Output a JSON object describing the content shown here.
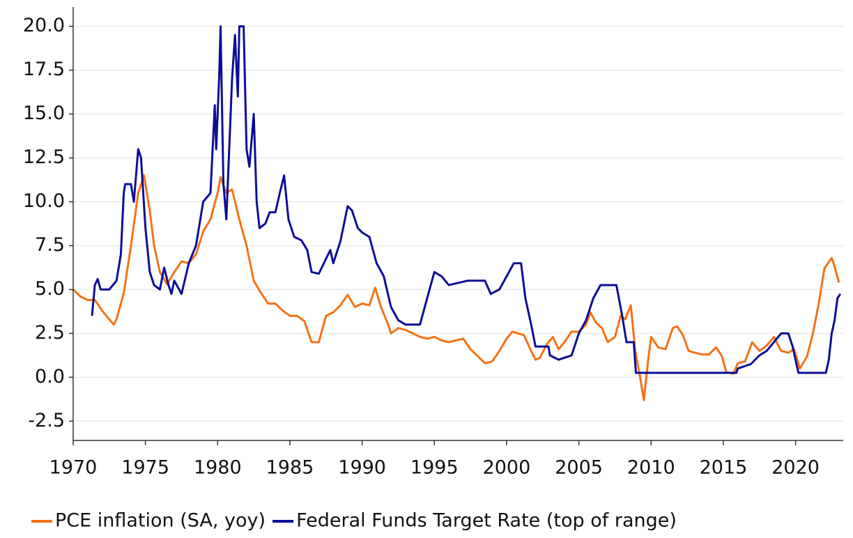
{
  "chart_data": {
    "type": "line",
    "xlim": [
      1970,
      2023.3
    ],
    "xticks": [
      1970,
      1975,
      1980,
      1985,
      1990,
      1995,
      2000,
      2005,
      2010,
      2015,
      2020
    ],
    "ylim": [
      -3.6,
      21.1
    ],
    "yticks": [
      -2.5,
      {
        "value": 0,
        "label": "0.0"
      },
      2.5,
      {
        "value": 5,
        "label": "5.0"
      },
      7.5,
      {
        "value": 10,
        "label": "10.0"
      },
      12.5,
      {
        "value": 15,
        "label": "15.0"
      },
      17.5,
      {
        "value": 20,
        "label": "20.0"
      }
    ],
    "grid": true,
    "legend": "bottom",
    "series": [
      {
        "name": "PCE inflation (SA, yoy)",
        "color": "#f47216",
        "x": [
          1970.0,
          1970.5,
          1971.0,
          1971.5,
          1972.0,
          1972.5,
          1972.8,
          1973.0,
          1973.5,
          1974.0,
          1974.5,
          1974.9,
          1975.3,
          1975.6,
          1976.0,
          1976.5,
          1977.0,
          1977.5,
          1978.0,
          1978.5,
          1979.0,
          1979.5,
          1980.0,
          1980.2,
          1980.6,
          1981.0,
          1981.5,
          1982.0,
          1982.5,
          1983.0,
          1983.5,
          1984.0,
          1984.5,
          1985.0,
          1985.5,
          1986.0,
          1986.5,
          1987.0,
          1987.5,
          1988.0,
          1988.5,
          1989.0,
          1989.5,
          1990.0,
          1990.5,
          1990.9,
          1991.3,
          1991.8,
          1992.0,
          1992.5,
          1993.0,
          1993.5,
          1994.0,
          1994.5,
          1995.0,
          1995.5,
          1996.0,
          1996.5,
          1997.0,
          1997.5,
          1998.0,
          1998.5,
          1999.0,
          1999.5,
          2000.0,
          2000.4,
          2000.8,
          2001.2,
          2001.7,
          2002.0,
          2002.3,
          2002.8,
          2003.2,
          2003.6,
          2004.0,
          2004.5,
          2005.0,
          2005.5,
          2005.8,
          2006.2,
          2006.6,
          2007.0,
          2007.5,
          2007.9,
          2008.2,
          2008.6,
          2008.9,
          2009.2,
          2009.5,
          2009.8,
          2010.0,
          2010.5,
          2011.0,
          2011.5,
          2011.8,
          2012.2,
          2012.6,
          2013.0,
          2013.5,
          2014.0,
          2014.5,
          2014.9,
          2015.2,
          2015.7,
          2016.0,
          2016.5,
          2017.0,
          2017.5,
          2018.0,
          2018.5,
          2019.0,
          2019.5,
          2019.9,
          2020.3,
          2020.8,
          2021.2,
          2021.6,
          2022.0,
          2022.5,
          2022.7,
          2023.0
        ],
        "values": [
          5.0,
          4.6,
          4.4,
          4.4,
          3.8,
          3.3,
          3.0,
          3.3,
          4.8,
          7.5,
          10.5,
          11.5,
          9.5,
          7.5,
          6.0,
          5.3,
          6.0,
          6.6,
          6.5,
          7.0,
          8.3,
          9.0,
          10.5,
          11.4,
          10.5,
          10.7,
          9.0,
          7.5,
          5.5,
          4.8,
          4.2,
          4.2,
          3.8,
          3.5,
          3.5,
          3.2,
          2.0,
          2.0,
          3.5,
          3.7,
          4.1,
          4.7,
          4.0,
          4.2,
          4.1,
          5.1,
          4.0,
          3.0,
          2.5,
          2.8,
          2.7,
          2.5,
          2.3,
          2.2,
          2.3,
          2.1,
          2.0,
          2.1,
          2.2,
          1.6,
          1.2,
          0.8,
          0.9,
          1.5,
          2.2,
          2.6,
          2.5,
          2.4,
          1.5,
          1.0,
          1.1,
          1.9,
          2.3,
          1.6,
          2.0,
          2.6,
          2.6,
          3.0,
          3.7,
          3.1,
          2.8,
          2.0,
          2.3,
          3.5,
          3.3,
          4.1,
          1.5,
          0.2,
          -1.3,
          1.0,
          2.3,
          1.7,
          1.6,
          2.8,
          2.9,
          2.4,
          1.5,
          1.4,
          1.3,
          1.3,
          1.7,
          1.2,
          0.3,
          0.2,
          0.8,
          0.9,
          2.0,
          1.5,
          1.8,
          2.3,
          1.5,
          1.4,
          1.6,
          0.5,
          1.2,
          2.5,
          4.2,
          6.2,
          6.8,
          6.3,
          5.4
        ]
      },
      {
        "name": "Federal Funds Target Rate (top of range)",
        "color": "#0d0d96",
        "x": [
          1971.3,
          1971.5,
          1971.7,
          1971.9,
          1972.5,
          1973.0,
          1973.3,
          1973.5,
          1973.6,
          1974.0,
          1974.2,
          1974.5,
          1974.7,
          1975.0,
          1975.3,
          1975.6,
          1976.0,
          1976.3,
          1976.6,
          1976.8,
          1977.0,
          1977.5,
          1978.0,
          1978.5,
          1979.0,
          1979.5,
          1979.8,
          1979.9,
          1980.1,
          1980.2,
          1980.4,
          1980.6,
          1981.0,
          1981.2,
          1981.4,
          1981.5,
          1981.8,
          1982.0,
          1982.2,
          1982.5,
          1982.7,
          1982.9,
          1983.3,
          1983.6,
          1984.0,
          1984.3,
          1984.6,
          1984.9,
          1985.3,
          1985.8,
          1986.2,
          1986.5,
          1987.0,
          1987.5,
          1987.8,
          1988.0,
          1988.5,
          1989.0,
          1989.3,
          1989.7,
          1990.0,
          1990.5,
          1991.0,
          1991.5,
          1992.0,
          1992.5,
          1993.0,
          1994.0,
          1994.5,
          1995.0,
          1995.5,
          1996.0,
          1997.3,
          1998.5,
          1998.9,
          1999.5,
          2000.0,
          2000.5,
          2001.0,
          2001.3,
          2001.7,
          2002.0,
          2002.9,
          2003.0,
          2003.6,
          2004.5,
          2005.0,
          2005.5,
          2006.0,
          2006.5,
          2007.6,
          2008.0,
          2008.3,
          2008.8,
          2008.95,
          2015.9,
          2016.0,
          2016.9,
          2017.5,
          2018.0,
          2018.5,
          2019.0,
          2019.5,
          2019.8,
          2020.2,
          2022.1,
          2022.3,
          2022.5,
          2022.7,
          2022.9,
          2023.1
        ],
        "values": [
          3.5,
          5.25,
          5.6,
          5.0,
          5.0,
          5.5,
          7.0,
          10.5,
          11.0,
          11.0,
          10.0,
          13.0,
          12.5,
          8.5,
          6.0,
          5.25,
          5.0,
          6.25,
          5.25,
          4.75,
          5.5,
          4.75,
          6.5,
          7.5,
          10.0,
          10.5,
          15.5,
          13.0,
          17.0,
          20.0,
          11.0,
          9.0,
          17.0,
          19.5,
          16.0,
          20.0,
          20.0,
          13.0,
          12.0,
          15.0,
          10.0,
          8.5,
          8.75,
          9.4,
          9.4,
          10.5,
          11.5,
          9.0,
          8.0,
          7.8,
          7.25,
          6.0,
          5.9,
          6.75,
          7.25,
          6.5,
          7.75,
          9.75,
          9.5,
          8.5,
          8.25,
          8.0,
          6.5,
          5.75,
          4.0,
          3.25,
          3.0,
          3.0,
          4.5,
          6.0,
          5.75,
          5.25,
          5.5,
          5.5,
          4.75,
          5.0,
          5.75,
          6.5,
          6.5,
          4.5,
          3.0,
          1.75,
          1.75,
          1.25,
          1.0,
          1.25,
          2.5,
          3.25,
          4.5,
          5.25,
          5.25,
          3.5,
          2.0,
          2.0,
          0.25,
          0.25,
          0.5,
          0.75,
          1.25,
          1.5,
          2.0,
          2.5,
          2.5,
          1.75,
          0.25,
          0.25,
          1.0,
          2.5,
          3.25,
          4.5,
          4.75
        ]
      }
    ]
  }
}
